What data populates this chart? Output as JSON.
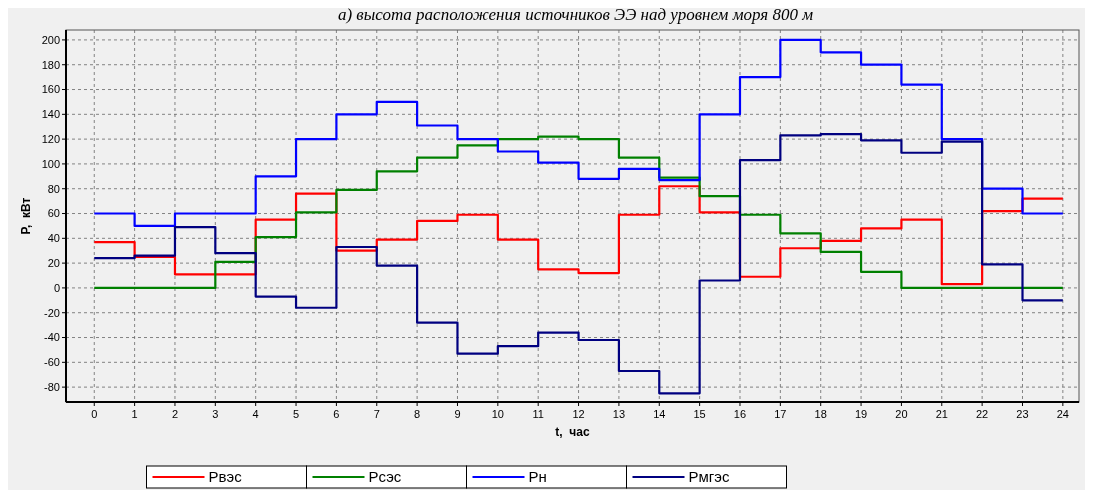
{
  "chart_data": {
    "type": "step",
    "title": "а) высота расположения источников ЭЭ над уровнем моря 800 м",
    "xlabel": "t,  час",
    "ylabel": "P,  кВт",
    "x": [
      0,
      1,
      2,
      3,
      4,
      5,
      6,
      7,
      8,
      9,
      10,
      11,
      12,
      13,
      14,
      15,
      16,
      17,
      18,
      19,
      20,
      21,
      22,
      23,
      24
    ],
    "series": [
      {
        "name": "Рвэс",
        "color": "#ff0000",
        "values": [
          37,
          25,
          11,
          11,
          55,
          76,
          30,
          39,
          54,
          59,
          39,
          15,
          12,
          59,
          82,
          61,
          9,
          32,
          38,
          48,
          55,
          3,
          62,
          72,
          72
        ]
      },
      {
        "name": "Рсэс",
        "color": "#008000",
        "values": [
          0,
          0,
          0,
          21,
          41,
          61,
          79,
          94,
          105,
          115,
          120,
          122,
          120,
          105,
          89,
          74,
          59,
          44,
          29,
          13,
          0,
          0,
          0,
          0,
          0
        ]
      },
      {
        "name": "Рн",
        "color": "#0000ff",
        "values": [
          60,
          50,
          60,
          60,
          90,
          120,
          140,
          150,
          131,
          120,
          110,
          101,
          88,
          96,
          87,
          140,
          170,
          200,
          190,
          180,
          164,
          120,
          80,
          60,
          60
        ]
      },
      {
        "name": "Рмгэс",
        "color": "#000080",
        "values": [
          24,
          26,
          49,
          28,
          -7,
          -16,
          33,
          18,
          -28,
          -53,
          -47,
          -36,
          -42,
          -67,
          -85,
          6,
          103,
          123,
          124,
          119,
          109,
          118,
          19,
          -10,
          -10
        ]
      }
    ],
    "xlim": [
      -0.7,
      24.4
    ],
    "ylim": [
      -92,
      208
    ],
    "xticks": [
      0,
      1,
      2,
      3,
      4,
      5,
      6,
      7,
      8,
      9,
      10,
      11,
      12,
      13,
      14,
      15,
      16,
      17,
      18,
      19,
      20,
      21,
      22,
      23,
      24
    ],
    "yticks": [
      -80,
      -60,
      -40,
      -20,
      0,
      20,
      40,
      60,
      80,
      100,
      120,
      140,
      160,
      180,
      200
    ],
    "grid": true,
    "legend": "bottom",
    "line_style": "solid"
  }
}
